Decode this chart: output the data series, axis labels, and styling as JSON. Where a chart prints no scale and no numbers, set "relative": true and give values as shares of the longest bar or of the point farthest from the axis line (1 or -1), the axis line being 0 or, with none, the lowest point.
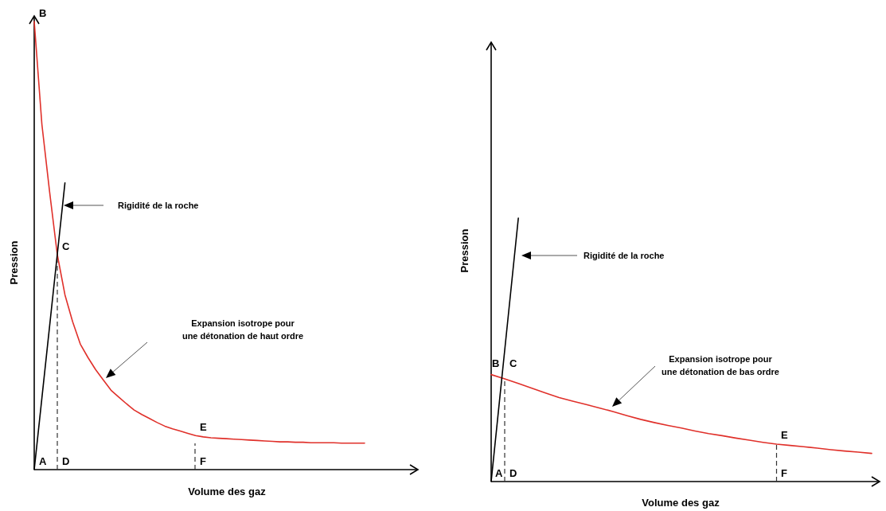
{
  "chart_data": [
    {
      "type": "line",
      "relative": true,
      "xlabel": "Volume des gaz",
      "ylabel": "Pression",
      "categories": [
        null,
        null,
        null,
        null,
        null,
        null,
        null,
        null,
        null,
        null,
        null,
        null,
        null,
        null,
        null,
        null,
        null,
        null,
        null,
        null,
        null,
        null,
        null,
        null,
        null,
        null,
        null,
        null,
        null,
        null,
        null,
        null,
        null,
        null,
        null,
        null,
        null,
        null,
        null,
        null,
        null,
        null,
        null,
        null
      ],
      "series": [
        {
          "color": "#e0302a",
          "values": [
            1,
            0.77,
            0.62,
            0.48,
            0.39,
            0.33,
            0.28,
            0.25,
            0.223,
            0.2,
            0.177,
            0.162,
            0.147,
            0.133,
            0.123,
            0.114,
            0.105,
            0.097,
            0.091,
            0.086,
            0.081,
            0.076,
            0.073,
            0.071,
            0.07,
            0.069,
            0.068,
            0.067,
            0.066,
            0.065,
            0.064,
            0.063,
            0.062,
            0.062,
            0.061,
            0.061,
            0.06,
            0.06,
            0.06,
            0.06,
            0.059,
            0.059,
            0.059,
            0.059
          ]
        },
        {
          "color": "#000000",
          "values": [
            0,
            0.16,
            0.32,
            0.48,
            0.64,
            null,
            null,
            null,
            null,
            null,
            null,
            null,
            null,
            null,
            null,
            null,
            null,
            null,
            null,
            null,
            null,
            null,
            null,
            null,
            null,
            null,
            null,
            null,
            null,
            null,
            null,
            null,
            null,
            null,
            null,
            null,
            null,
            null,
            null,
            null,
            null,
            null,
            null,
            null
          ]
        }
      ],
      "annotations": [
        "A",
        "B",
        "C",
        "D",
        "E",
        "F",
        "Rigidité de la roche",
        "Expansion isotrope pour\nune détonation de haut ordre"
      ]
    },
    {
      "type": "line",
      "relative": true,
      "xlabel": "Volume des gaz",
      "ylabel": "Pression",
      "categories": [
        null,
        null,
        null,
        null,
        null,
        null,
        null,
        null,
        null,
        null,
        null,
        null,
        null,
        null,
        null,
        null,
        null,
        null,
        null,
        null,
        null,
        null,
        null,
        null,
        null,
        null,
        null,
        null,
        null
      ],
      "series": [
        {
          "color": "#e0302a",
          "values": [
            0.406,
            0.39,
            0.372,
            0.354,
            0.336,
            0.319,
            0.305,
            0.292,
            0.279,
            0.265,
            0.25,
            0.236,
            0.224,
            0.213,
            0.203,
            0.192,
            0.182,
            0.174,
            0.165,
            0.157,
            0.149,
            0.142,
            0.137,
            0.132,
            0.127,
            0.121,
            0.116,
            0.112,
            0.107
          ]
        },
        {
          "color": "#000000",
          "values": [
            0,
            0.5,
            1,
            null,
            null,
            null,
            null,
            null,
            null,
            null,
            null,
            null,
            null,
            null,
            null,
            null,
            null,
            null,
            null,
            null,
            null,
            null,
            null,
            null,
            null,
            null,
            null,
            null,
            null
          ]
        }
      ],
      "annotations": [
        "A",
        "B",
        "C",
        "D",
        "E",
        "F",
        "Rigidité de la roche",
        "Expansion isotrope pour\nune détonation de bas ordre"
      ]
    }
  ]
}
